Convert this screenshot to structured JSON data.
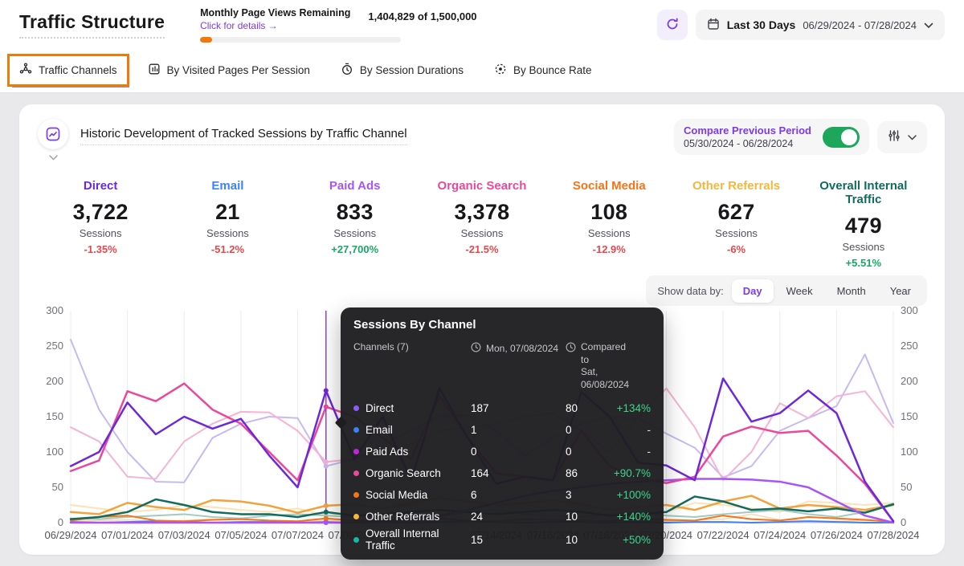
{
  "header": {
    "title": "Traffic Structure",
    "usage": {
      "label": "Monthly Page Views Remaining",
      "link": "Click for details →",
      "value": "1,404,829 of 1,500,000",
      "progress_pct": 6
    },
    "date_range": {
      "preset": "Last 30 Days",
      "range": "06/29/2024 - 07/28/2024"
    }
  },
  "tabs": [
    {
      "label": "Traffic Channels",
      "icon": "traffic-channels-icon",
      "active": true
    },
    {
      "label": "By Visited Pages Per Session",
      "icon": "visited-pages-icon",
      "active": false
    },
    {
      "label": "By Session Durations",
      "icon": "session-durations-icon",
      "active": false
    },
    {
      "label": "By Bounce Rate",
      "icon": "bounce-rate-icon",
      "active": false
    }
  ],
  "card": {
    "title": "Historic Development of Tracked Sessions by Traffic Channel",
    "compare": {
      "label": "Compare Previous Period",
      "range": "05/30/2024 - 06/28/2024",
      "enabled": true,
      "toggle_color": "#1DA75C"
    },
    "stats": [
      {
        "name": "Direct",
        "color": "#6D28D9",
        "value": "3,722",
        "unit": "Sessions",
        "delta": "-1.35%"
      },
      {
        "name": "Email",
        "color": "#3B82F6",
        "value": "21",
        "unit": "Sessions",
        "delta": "-51.2%"
      },
      {
        "name": "Paid Ads",
        "color": "#A855F7",
        "value": "833",
        "unit": "Sessions",
        "delta": "+27,700%"
      },
      {
        "name": "Organic Search",
        "color": "#EC4899",
        "value": "3,378",
        "unit": "Sessions",
        "delta": "-21.5%"
      },
      {
        "name": "Social Media",
        "color": "#F97316",
        "value": "108",
        "unit": "Sessions",
        "delta": "-12.9%"
      },
      {
        "name": "Other Referrals",
        "color": "#F5B63F",
        "value": "627",
        "unit": "Sessions",
        "delta": "-6%"
      },
      {
        "name": "Overall Internal Traffic",
        "color": "#116B5E",
        "value": "479",
        "unit": "Sessions",
        "delta": "+5.51%"
      }
    ],
    "show_data_by": {
      "label": "Show data by:",
      "options": [
        "Day",
        "Week",
        "Month",
        "Year"
      ],
      "selected": "Day"
    }
  },
  "tooltip": {
    "title": "Sessions By Channel",
    "col_channels": "Channels  (7)",
    "col_current": "Mon, 07/08/2024",
    "col_compared_line1": "Compared to",
    "col_compared_line2": "Sat, 06/08/2024",
    "rows": [
      {
        "name": "Direct",
        "color": "#8B5CF6",
        "current": "187",
        "previous": "80",
        "delta": "+134%"
      },
      {
        "name": "Email",
        "color": "#3B82F6",
        "current": "1",
        "previous": "0",
        "delta": "-"
      },
      {
        "name": "Paid Ads",
        "color": "#C026D3",
        "current": "0",
        "previous": "0",
        "delta": "-"
      },
      {
        "name": "Organic Search",
        "color": "#EC4899",
        "current": "164",
        "previous": "86",
        "delta": "+90.7%"
      },
      {
        "name": "Social Media",
        "color": "#F97316",
        "current": "6",
        "previous": "3",
        "delta": "+100%"
      },
      {
        "name": "Other Referrals",
        "color": "#F5B63F",
        "current": "24",
        "previous": "10",
        "delta": "+140%"
      },
      {
        "name": "Overall Internal Traffic",
        "color": "#14B8A6",
        "current": "15",
        "previous": "10",
        "delta": "+50%"
      }
    ]
  },
  "chart_data": {
    "type": "line",
    "title": "Historic Development of Tracked Sessions by Traffic Channel",
    "ylim": [
      0,
      300
    ],
    "yticks": [
      0,
      50,
      100,
      150,
      200,
      250,
      300
    ],
    "grid": "vertical",
    "marker_index": 9,
    "marker_date": "07/08/2024",
    "x": [
      "06/29/2024",
      "06/30/2024",
      "07/01/2024",
      "07/02/2024",
      "07/03/2024",
      "07/04/2024",
      "07/05/2024",
      "07/06/2024",
      "07/07/2024",
      "07/08/2024",
      "07/09/2024",
      "07/10/2024",
      "07/11/2024",
      "07/12/2024",
      "07/13/2024",
      "07/14/2024",
      "07/15/2024",
      "07/16/2024",
      "07/17/2024",
      "07/18/2024",
      "07/19/2024",
      "07/20/2024",
      "07/21/2024",
      "07/22/2024",
      "07/23/2024",
      "07/24/2024",
      "07/25/2024",
      "07/26/2024",
      "07/27/2024",
      "07/28/2024"
    ],
    "visible_x_labels": [
      {
        "i": 0,
        "t": "06/29/2024"
      },
      {
        "i": 2,
        "t": "07/01/2024"
      },
      {
        "i": 4,
        "t": "07/03/2024"
      },
      {
        "i": 6,
        "t": "07/05/2024"
      },
      {
        "i": 8,
        "t": "07/07/2024"
      },
      {
        "i": 10,
        "t": "07/09/2024"
      },
      {
        "i": 12,
        "t": "07/11/2024"
      },
      {
        "i": 15,
        "t": "07/14/2024"
      },
      {
        "i": 17,
        "t": "07/16/2024"
      },
      {
        "i": 19,
        "t": "07/18/2024"
      },
      {
        "i": 21,
        "t": "07/20/2024"
      },
      {
        "i": 23,
        "t": "07/22/2024"
      },
      {
        "i": 25,
        "t": "07/24/2024"
      },
      {
        "i": 27,
        "t": "07/26/2024"
      },
      {
        "i": 29,
        "t": "07/28/2024"
      }
    ],
    "series": [
      {
        "name": "Direct (previous)",
        "period": "previous",
        "color": "#C7B9F2",
        "width": 2,
        "values": [
          259,
          160,
          100,
          58,
          57,
          120,
          140,
          150,
          148,
          80,
          90,
          110,
          130,
          150,
          152,
          130,
          95,
          120,
          140,
          150,
          148,
          126,
          106,
          64,
          80,
          130,
          148,
          165,
          238,
          141
        ]
      },
      {
        "name": "Email (previous)",
        "period": "previous",
        "color": "#BFDBFE",
        "width": 1.5,
        "values": [
          0,
          0,
          0,
          0,
          0,
          0,
          0,
          0,
          0,
          0,
          0,
          0,
          0,
          0,
          0,
          0,
          0,
          0,
          0,
          0,
          0,
          0,
          0,
          0,
          0,
          0,
          0,
          0,
          0,
          0
        ]
      },
      {
        "name": "Paid Ads (previous)",
        "period": "previous",
        "color": "#E9D5FF",
        "width": 1.5,
        "values": [
          0,
          0,
          0,
          0,
          0,
          0,
          0,
          0,
          0,
          0,
          0,
          0,
          0,
          0,
          0,
          0,
          0,
          0,
          0,
          0,
          0,
          0,
          0,
          0,
          0,
          0,
          0,
          0,
          0,
          0
        ]
      },
      {
        "name": "Organic Search (previous)",
        "period": "previous",
        "color": "#F7B3D4",
        "width": 2,
        "values": [
          135,
          115,
          65,
          62,
          115,
          140,
          157,
          156,
          130,
          86,
          90,
          95,
          110,
          130,
          135,
          140,
          150,
          155,
          130,
          100,
          150,
          190,
          135,
          60,
          100,
          169,
          148,
          179,
          186,
          135
        ]
      },
      {
        "name": "Social Media (previous)",
        "period": "previous",
        "color": "#FED7AA",
        "width": 1.5,
        "values": [
          2,
          3,
          4,
          2,
          3,
          5,
          4,
          3,
          2,
          3,
          4,
          3,
          2,
          4,
          3,
          2,
          3,
          4,
          2,
          3,
          4,
          2,
          3,
          5,
          12,
          4,
          3,
          2,
          3,
          2
        ]
      },
      {
        "name": "Other Referrals (previous)",
        "period": "previous",
        "color": "#FBE3B5",
        "width": 2,
        "values": [
          25,
          20,
          15,
          18,
          25,
          22,
          18,
          15,
          20,
          10,
          15,
          20,
          25,
          30,
          42,
          30,
          25,
          20,
          18,
          25,
          20,
          15,
          28,
          25,
          20,
          15,
          30,
          28,
          25,
          28
        ]
      },
      {
        "name": "Overall Internal Traffic (previous)",
        "period": "previous",
        "color": "#A3C9C0",
        "width": 2,
        "values": [
          6,
          5,
          8,
          10,
          12,
          8,
          6,
          10,
          12,
          10,
          8,
          10,
          12,
          8,
          15,
          18,
          12,
          10,
          8,
          12,
          15,
          10,
          8,
          12,
          15,
          18,
          12,
          8,
          15,
          27
        ]
      },
      {
        "name": "Email",
        "period": "current",
        "color": "#3B82F6",
        "width": 2,
        "values": [
          1,
          0,
          1,
          2,
          1,
          0,
          1,
          1,
          0,
          1,
          0,
          1,
          0,
          1,
          2,
          1,
          0,
          1,
          1,
          0,
          1,
          0,
          1,
          1,
          0,
          1,
          2,
          1,
          0,
          0
        ]
      },
      {
        "name": "Social Media",
        "period": "current",
        "color": "#F97316",
        "width": 2,
        "values": [
          3,
          8,
          10,
          3,
          2,
          4,
          5,
          3,
          2,
          6,
          3,
          2,
          4,
          6,
          3,
          2,
          5,
          4,
          3,
          2,
          6,
          4,
          3,
          10,
          5,
          3,
          8,
          6,
          4,
          1
        ]
      },
      {
        "name": "Other Referrals",
        "period": "current",
        "color": "#F2A33C",
        "width": 2.5,
        "values": [
          15,
          12,
          28,
          22,
          18,
          32,
          30,
          24,
          14,
          24,
          26,
          20,
          28,
          35,
          30,
          25,
          28,
          32,
          26,
          18,
          22,
          25,
          18,
          30,
          38,
          20,
          25,
          22,
          18,
          25
        ]
      },
      {
        "name": "Overall Internal Traffic",
        "period": "current",
        "color": "#116B5E",
        "width": 2.5,
        "values": [
          5,
          8,
          15,
          33,
          25,
          15,
          12,
          12,
          8,
          15,
          10,
          12,
          15,
          18,
          15,
          12,
          15,
          18,
          15,
          10,
          12,
          15,
          37,
          30,
          18,
          20,
          16,
          20,
          14,
          26
        ]
      },
      {
        "name": "Paid Ads",
        "period": "current",
        "color": "#A855F7",
        "width": 2.5,
        "values": [
          0,
          0,
          0,
          0,
          0,
          0,
          0,
          0,
          0,
          0,
          0,
          2,
          5,
          10,
          18,
          28,
          38,
          45,
          50,
          55,
          58,
          60,
          62,
          62,
          61,
          58,
          50,
          30,
          10,
          0
        ]
      },
      {
        "name": "Organic Search",
        "period": "current",
        "color": "#EC4899",
        "width": 2.5,
        "values": [
          73,
          88,
          186,
          172,
          197,
          160,
          140,
          100,
          60,
          164,
          150,
          120,
          90,
          180,
          120,
          70,
          65,
          60,
          130,
          80,
          63,
          56,
          65,
          122,
          136,
          127,
          130,
          95,
          55,
          2
        ]
      },
      {
        "name": "Direct",
        "period": "current",
        "color": "#6D28D9",
        "width": 2.5,
        "values": [
          80,
          100,
          170,
          125,
          150,
          133,
          147,
          95,
          50,
          187,
          90,
          150,
          60,
          190,
          120,
          55,
          65,
          60,
          185,
          150,
          85,
          81,
          60,
          204,
          143,
          155,
          187,
          155,
          58,
          2
        ]
      }
    ]
  }
}
